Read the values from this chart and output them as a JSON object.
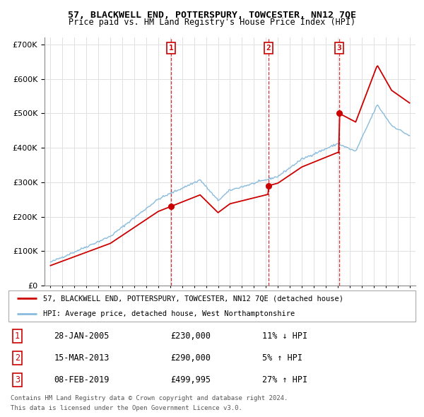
{
  "title": "57, BLACKWELL END, POTTERSPURY, TOWCESTER, NN12 7QE",
  "subtitle": "Price paid vs. HM Land Registry's House Price Index (HPI)",
  "sale_label": "57, BLACKWELL END, POTTERSPURY, TOWCESTER, NN12 7QE (detached house)",
  "hpi_label": "HPI: Average price, detached house, West Northamptonshire",
  "sale_color": "#cc0000",
  "hpi_color": "#88bbdd",
  "transactions": [
    {
      "num": 1,
      "date": "28-JAN-2005",
      "price": 230000,
      "pct": "11%",
      "dir": "↓",
      "x": 2005.07
    },
    {
      "num": 2,
      "date": "15-MAR-2013",
      "price": 290000,
      "pct": "5%",
      "dir": "↑",
      "x": 2013.21
    },
    {
      "num": 3,
      "date": "08-FEB-2019",
      "price": 499995,
      "pct": "27%",
      "dir": "↑",
      "x": 2019.12
    }
  ],
  "footer1": "Contains HM Land Registry data © Crown copyright and database right 2024.",
  "footer2": "This data is licensed under the Open Government Licence v3.0.",
  "ylim": [
    0,
    720000
  ],
  "yticks": [
    0,
    100000,
    200000,
    300000,
    400000,
    500000,
    600000,
    700000
  ],
  "xlim": [
    1994.5,
    2025.5
  ],
  "xticks": [
    1995,
    1996,
    1997,
    1998,
    1999,
    2000,
    2001,
    2002,
    2003,
    2004,
    2005,
    2006,
    2007,
    2008,
    2009,
    2010,
    2011,
    2012,
    2013,
    2014,
    2015,
    2016,
    2017,
    2018,
    2019,
    2020,
    2021,
    2022,
    2023,
    2024,
    2025
  ],
  "row_data": [
    [
      1,
      "28-JAN-2005",
      "£230,000",
      "11% ↓ HPI"
    ],
    [
      2,
      "15-MAR-2013",
      "£290,000",
      "5% ↑ HPI"
    ],
    [
      3,
      "08-FEB-2019",
      "£499,995",
      "27% ↑ HPI"
    ]
  ]
}
